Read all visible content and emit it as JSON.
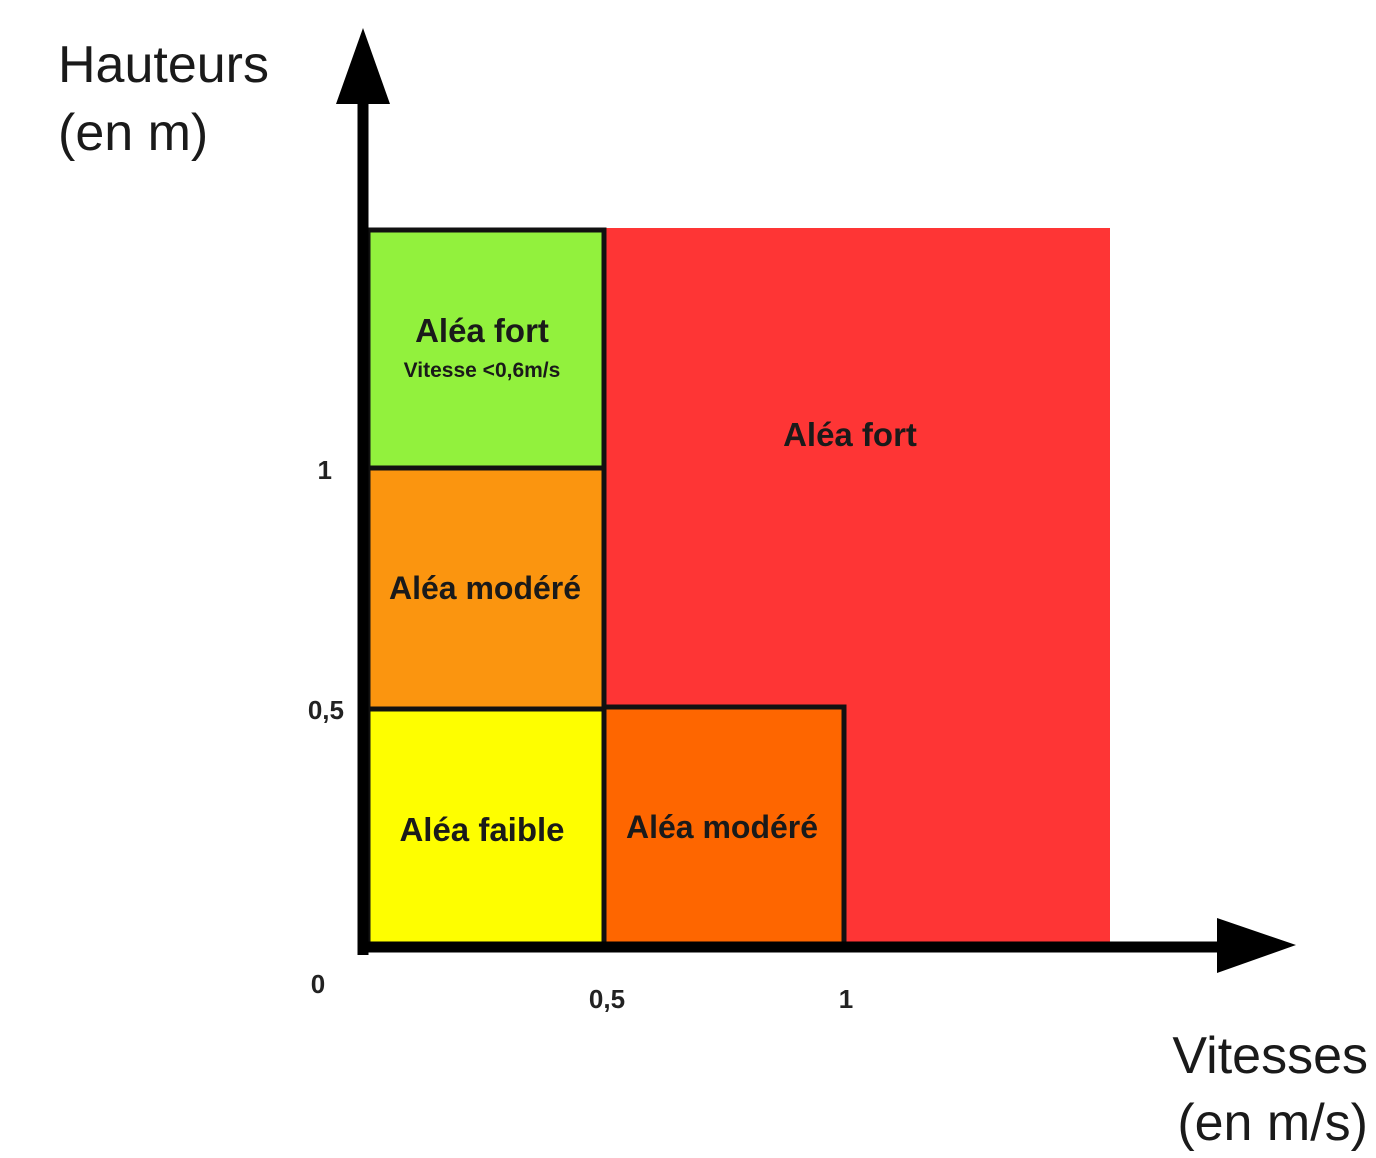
{
  "axes": {
    "y_title_line1": "Hauteurs",
    "y_title_line2": "(en m)",
    "x_title_line1": "Vitesses",
    "x_title_line2": "(en m/s)",
    "origin": "0",
    "x_ticks": [
      "0,5",
      "1"
    ],
    "y_ticks": [
      "0,5",
      "1"
    ]
  },
  "zones": {
    "fort_large": {
      "label": "Aléa fort",
      "color": "#fe3535"
    },
    "fort_low_speed": {
      "label": "Aléa fort",
      "sublabel": "Vitesse <0,6m/s",
      "color": "#92f13d"
    },
    "modere_upper": {
      "label": "Aléa modéré",
      "color": "#fb950f"
    },
    "modere_lower": {
      "label": "Aléa modéré",
      "color": "#fe6600"
    },
    "faible": {
      "label": "Aléa faible",
      "color": "#fefe00"
    }
  }
}
